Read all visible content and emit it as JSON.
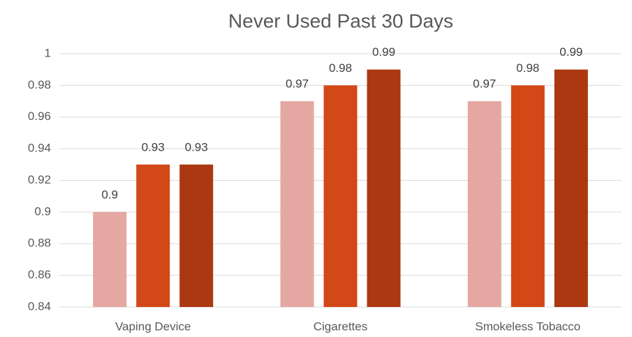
{
  "chart_data": {
    "type": "bar",
    "title": "Never Used Past 30 Days",
    "categories": [
      "Vaping Device",
      "Cigarettes",
      "Smokeless Tobacco"
    ],
    "series": [
      {
        "color": "#e5a7a1",
        "values": [
          0.9,
          0.97,
          0.97
        ]
      },
      {
        "color": "#d34817",
        "values": [
          0.93,
          0.98,
          0.98
        ]
      },
      {
        "color": "#ab3811",
        "values": [
          0.93,
          0.99,
          0.99
        ]
      }
    ],
    "ylim": [
      0.84,
      1
    ],
    "yticks": [
      0.84,
      0.86,
      0.88,
      0.9,
      0.92,
      0.94,
      0.96,
      0.98,
      1
    ],
    "grid": true
  }
}
